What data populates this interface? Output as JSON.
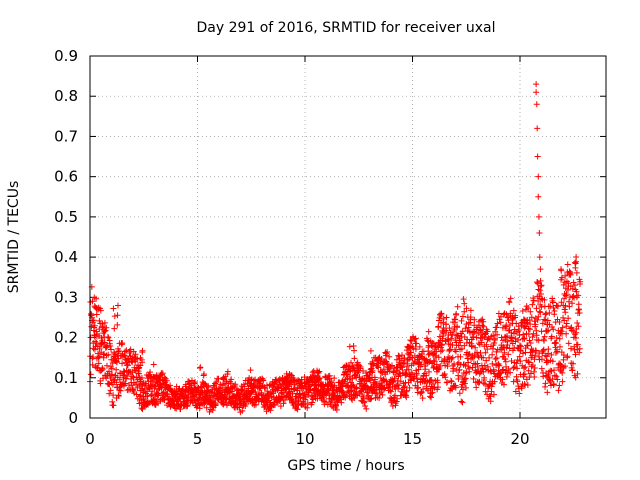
{
  "chart_data": {
    "type": "scatter",
    "title": "Day 291 of 2016, SRMTID for receiver uxal",
    "xlabel": "GPS time / hours",
    "ylabel": "SRMTID / TECUs",
    "xlim": [
      0,
      24
    ],
    "ylim": [
      0,
      0.9
    ],
    "xticks": [
      0,
      5,
      10,
      15,
      20
    ],
    "yticks": [
      0,
      0.1,
      0.2,
      0.3,
      0.4,
      0.5,
      0.6,
      0.7,
      0.8,
      0.9
    ],
    "grid": true,
    "marker": "+",
    "marker_color": "#ff0000",
    "series": [
      {
        "name": "SRMTID",
        "trend": [
          [
            0.0,
            0.2
          ],
          [
            0.5,
            0.17
          ],
          [
            1.0,
            0.13
          ],
          [
            1.5,
            0.12
          ],
          [
            2.0,
            0.1
          ],
          [
            2.5,
            0.08
          ],
          [
            3.0,
            0.07
          ],
          [
            3.5,
            0.06
          ],
          [
            4.0,
            0.055
          ],
          [
            5.0,
            0.055
          ],
          [
            6.0,
            0.06
          ],
          [
            7.0,
            0.06
          ],
          [
            8.0,
            0.06
          ],
          [
            9.0,
            0.065
          ],
          [
            10.0,
            0.07
          ],
          [
            11.0,
            0.07
          ],
          [
            12.0,
            0.08
          ],
          [
            13.0,
            0.09
          ],
          [
            14.0,
            0.1
          ],
          [
            15.0,
            0.12
          ],
          [
            16.0,
            0.14
          ],
          [
            17.0,
            0.17
          ],
          [
            18.0,
            0.15
          ],
          [
            19.0,
            0.16
          ],
          [
            20.0,
            0.18
          ],
          [
            21.0,
            0.2
          ],
          [
            22.0,
            0.2
          ],
          [
            22.8,
            0.25
          ]
        ],
        "peaks": [
          [
            0.2,
            0.26
          ],
          [
            0.5,
            0.24
          ],
          [
            1.2,
            0.28
          ],
          [
            2.4,
            0.18
          ],
          [
            3.0,
            0.14
          ],
          [
            5.2,
            0.13
          ],
          [
            6.3,
            0.12
          ],
          [
            7.5,
            0.12
          ],
          [
            9.2,
            0.11
          ],
          [
            10.5,
            0.12
          ],
          [
            12.2,
            0.18
          ],
          [
            13.1,
            0.17
          ],
          [
            14.8,
            0.16
          ],
          [
            15.8,
            0.22
          ],
          [
            16.3,
            0.23
          ],
          [
            17.0,
            0.29
          ],
          [
            17.4,
            0.3
          ],
          [
            18.2,
            0.24
          ],
          [
            19.3,
            0.26
          ],
          [
            20.2,
            0.28
          ],
          [
            21.3,
            0.27
          ],
          [
            22.0,
            0.38
          ],
          [
            22.6,
            0.41
          ]
        ],
        "spike": [
          [
            20.75,
            0.83
          ],
          [
            20.75,
            0.81
          ],
          [
            20.78,
            0.78
          ],
          [
            20.8,
            0.72
          ],
          [
            20.82,
            0.65
          ],
          [
            20.85,
            0.6
          ],
          [
            20.85,
            0.55
          ],
          [
            20.88,
            0.5
          ],
          [
            20.9,
            0.46
          ],
          [
            20.92,
            0.4
          ],
          [
            20.95,
            0.37
          ],
          [
            21.0,
            0.33
          ]
        ],
        "n_points": 2400
      }
    ]
  }
}
